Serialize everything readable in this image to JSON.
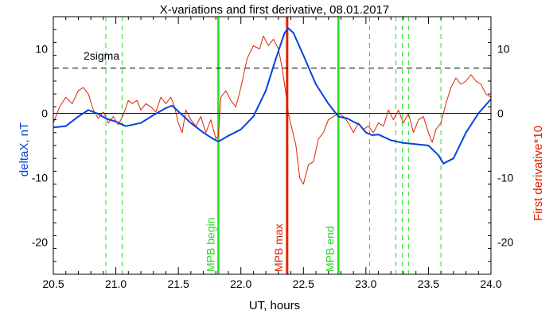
{
  "chart_data": {
    "type": "line",
    "title": "X-variations and first derivative, 08.01.2017",
    "xlabel": "UT, hours",
    "ylabel_left": "deltaX, nT",
    "ylabel_right": "First derivative*10",
    "xlim": [
      20.5,
      24.0
    ],
    "ylim": [
      -25,
      15
    ],
    "x_ticks": [
      20.5,
      21.0,
      21.5,
      22.0,
      22.5,
      23.0,
      23.5,
      24.0
    ],
    "x_tick_labels": [
      "20.5",
      "21.0",
      "21.5",
      "22.0",
      "22.5",
      "23.0",
      "23.5",
      "24.0"
    ],
    "y_ticks": [
      10,
      0,
      -10,
      -20
    ],
    "y_tick_labels": [
      "10",
      "0",
      "-10",
      "-20"
    ],
    "grid": false,
    "reference_lines": [
      {
        "y": 7.0,
        "label": "2sigma",
        "style": "dashed",
        "color": "#000000"
      },
      {
        "y": 0,
        "label": "",
        "style": "solid",
        "color": "#000000"
      }
    ],
    "markers": [
      {
        "x": 21.82,
        "label": "MPB begin",
        "color": "#22dd22",
        "style": "solid"
      },
      {
        "x": 22.37,
        "label": "MPB max",
        "color": "#dd2200",
        "style": "solid"
      },
      {
        "x": 22.78,
        "label": "MPB end",
        "color": "#22dd22",
        "style": "solid"
      }
    ],
    "dashed_markers": [
      20.92,
      21.05,
      23.03,
      23.24,
      23.29,
      23.34,
      23.6
    ],
    "dashed_marker_color": "#22dd22",
    "series": [
      {
        "color": "#0044dd",
        "x": [
          20.5,
          20.6,
          20.7,
          20.78,
          20.85,
          20.92,
          21.0,
          21.08,
          21.2,
          21.3,
          21.4,
          21.45,
          21.5,
          21.6,
          21.7,
          21.78,
          21.82,
          21.9,
          22.0,
          22.1,
          22.2,
          22.28,
          22.35,
          22.38,
          22.42,
          22.5,
          22.6,
          22.7,
          22.78,
          22.85,
          22.95,
          23.0,
          23.05,
          23.1,
          23.2,
          23.3,
          23.4,
          23.5,
          23.58,
          23.62,
          23.7,
          23.8,
          23.9,
          24.0
        ],
        "y": [
          -2.2,
          -2.0,
          -0.5,
          0.5,
          0.0,
          -0.8,
          -1.3,
          -2.0,
          -1.5,
          -0.3,
          0.8,
          1.2,
          0.3,
          -1.5,
          -3.0,
          -4.0,
          -4.4,
          -3.5,
          -2.5,
          -0.5,
          3.5,
          8.5,
          12.5,
          13.2,
          12.5,
          9.0,
          4.5,
          1.5,
          -0.5,
          -0.8,
          -1.8,
          -3.0,
          -3.4,
          -3.3,
          -4.2,
          -4.6,
          -4.8,
          -5.0,
          -6.5,
          -7.8,
          -7.0,
          -3.0,
          0.0,
          2.2
        ]
      },
      {
        "color": "#dd2200",
        "x": [
          20.5,
          20.55,
          20.6,
          20.65,
          20.7,
          20.74,
          20.78,
          20.82,
          20.86,
          20.9,
          20.94,
          20.98,
          21.02,
          21.06,
          21.1,
          21.13,
          21.17,
          21.2,
          21.24,
          21.28,
          21.32,
          21.36,
          21.4,
          21.44,
          21.47,
          21.5,
          21.53,
          21.56,
          21.6,
          21.64,
          21.68,
          21.72,
          21.76,
          21.8,
          21.82,
          21.84,
          21.88,
          21.92,
          21.96,
          22.0,
          22.05,
          22.1,
          22.15,
          22.18,
          22.22,
          22.26,
          22.3,
          22.33,
          22.36,
          22.38,
          22.41,
          22.44,
          22.47,
          22.5,
          22.54,
          22.58,
          22.62,
          22.66,
          22.7,
          22.74,
          22.78,
          22.82,
          22.86,
          22.9,
          22.94,
          22.98,
          23.02,
          23.06,
          23.1,
          23.14,
          23.18,
          23.22,
          23.26,
          23.3,
          23.34,
          23.38,
          23.42,
          23.46,
          23.5,
          23.53,
          23.56,
          23.6,
          23.64,
          23.68,
          23.72,
          23.76,
          23.8,
          23.84,
          23.88,
          23.92,
          23.96,
          24.0
        ],
        "y": [
          -1.5,
          1.0,
          2.5,
          1.5,
          3.5,
          4.0,
          3.0,
          0.5,
          -0.8,
          0.2,
          -1.5,
          -0.5,
          -1.8,
          -0.2,
          2.0,
          1.5,
          2.0,
          0.5,
          1.5,
          1.0,
          0.2,
          2.5,
          1.5,
          2.5,
          1.0,
          -1.5,
          -3.0,
          0.5,
          -1.0,
          -2.0,
          -0.5,
          -3.0,
          -1.0,
          -4.0,
          -3.5,
          2.5,
          3.5,
          2.0,
          1.0,
          4.0,
          8.5,
          10.5,
          10.0,
          12.0,
          10.5,
          11.5,
          10.0,
          7.0,
          3.0,
          0.0,
          -2.5,
          -5.0,
          -10.0,
          -11.0,
          -8.0,
          -7.5,
          -4.0,
          -3.0,
          -1.0,
          -0.5,
          0.0,
          -0.5,
          -1.5,
          -3.0,
          -1.5,
          -2.5,
          -2.0,
          -3.0,
          -1.5,
          -2.0,
          0.5,
          -1.0,
          0.5,
          -1.5,
          0.0,
          -3.0,
          -1.0,
          -0.5,
          -3.0,
          -4.5,
          -2.5,
          -1.5,
          1.5,
          4.0,
          5.5,
          4.5,
          5.0,
          6.0,
          5.0,
          4.5,
          3.0,
          2.5
        ]
      }
    ]
  }
}
